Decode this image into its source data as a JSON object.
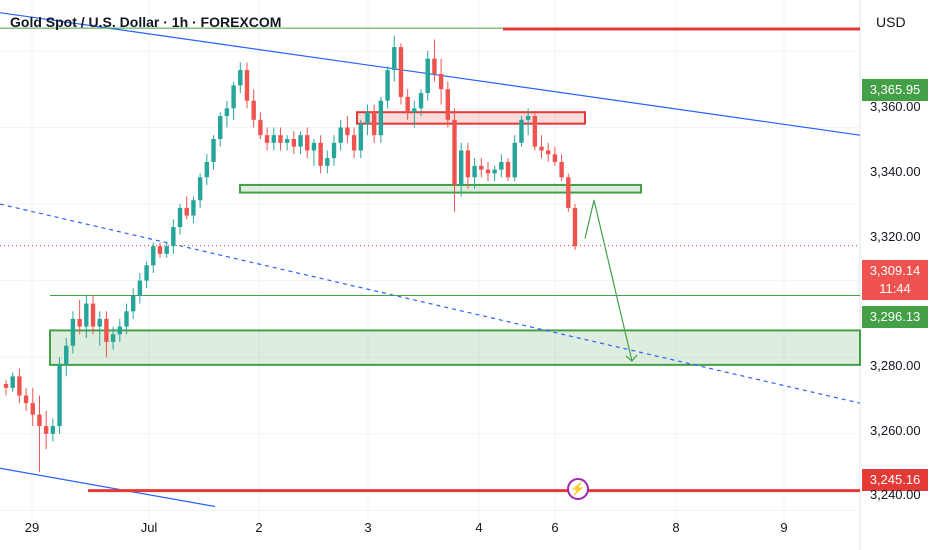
{
  "title": "Gold Spot / U.S. Dollar · 1h · FOREXCOM",
  "currency": "USD",
  "colors": {
    "up": "#26a69a",
    "down": "#ef5350",
    "blue": "#2962ff",
    "green": "#43a047",
    "red": "#e53935",
    "zone_red": "#ef5350",
    "zone_green": "#26a69a"
  },
  "price_tags": [
    {
      "id": "resistance",
      "label": "3,365.95",
      "color": "#43a047"
    },
    {
      "id": "current",
      "label": "3,309.14",
      "sub": "11:44",
      "color": "#ef5350"
    },
    {
      "id": "support",
      "label": "3,296.13",
      "color": "#43a047"
    },
    {
      "id": "lowline",
      "label": "3,245.16",
      "color": "#e53935"
    }
  ],
  "y_ticks": [
    "3,360.00",
    "3,340.00",
    "3,320.00",
    "3,280.00",
    "3,260.00",
    "3,240.00"
  ],
  "x_ticks": [
    "29",
    "Jul",
    "2",
    "3",
    "4",
    "6",
    "8",
    "9"
  ],
  "chart_data": {
    "type": "candlestick",
    "title": "Gold Spot / U.S. Dollar · 1h · FOREXCOM",
    "y_unit": "USD",
    "ylim": [
      3238,
      3372
    ],
    "x_labels": [
      "29",
      "Jul",
      "2",
      "3",
      "4",
      "6",
      "8",
      "9"
    ],
    "grid": true,
    "candles": [
      [
        3273,
        3274,
        3270,
        3272
      ],
      [
        3272,
        3276,
        3271,
        3275
      ],
      [
        3275,
        3277,
        3268,
        3270
      ],
      [
        3270,
        3272,
        3266,
        3268
      ],
      [
        3268,
        3272,
        3262,
        3265
      ],
      [
        3265,
        3270,
        3250,
        3262
      ],
      [
        3262,
        3266,
        3256,
        3260
      ],
      [
        3260,
        3264,
        3258,
        3262
      ],
      [
        3262,
        3280,
        3260,
        3278
      ],
      [
        3278,
        3285,
        3275,
        3283
      ],
      [
        3283,
        3292,
        3281,
        3290
      ],
      [
        3290,
        3295,
        3286,
        3288
      ],
      [
        3288,
        3296,
        3285,
        3294
      ],
      [
        3294,
        3296,
        3286,
        3288
      ],
      [
        3288,
        3292,
        3283,
        3290
      ],
      [
        3290,
        3292,
        3280,
        3284
      ],
      [
        3284,
        3288,
        3282,
        3286
      ],
      [
        3286,
        3290,
        3284,
        3288
      ],
      [
        3288,
        3294,
        3286,
        3292
      ],
      [
        3292,
        3298,
        3290,
        3296
      ],
      [
        3296,
        3302,
        3294,
        3300
      ],
      [
        3300,
        3305,
        3298,
        3304
      ],
      [
        3304,
        3310,
        3302,
        3309
      ],
      [
        3309,
        3310,
        3306,
        3307
      ],
      [
        3307,
        3310,
        3306,
        3309
      ],
      [
        3309,
        3316,
        3307,
        3314
      ],
      [
        3314,
        3320,
        3312,
        3319
      ],
      [
        3319,
        3322,
        3316,
        3317
      ],
      [
        3317,
        3322,
        3315,
        3321
      ],
      [
        3321,
        3328,
        3319,
        3327
      ],
      [
        3327,
        3333,
        3325,
        3331
      ],
      [
        3331,
        3338,
        3329,
        3337
      ],
      [
        3337,
        3344,
        3335,
        3343
      ],
      [
        3343,
        3347,
        3340,
        3345
      ],
      [
        3345,
        3352,
        3342,
        3351
      ],
      [
        3351,
        3357,
        3349,
        3355
      ],
      [
        3355,
        3357,
        3345,
        3347
      ],
      [
        3347,
        3350,
        3340,
        3342
      ],
      [
        3342,
        3344,
        3337,
        3338
      ],
      [
        3338,
        3340,
        3334,
        3336
      ],
      [
        3336,
        3340,
        3334,
        3338
      ],
      [
        3338,
        3340,
        3334,
        3336
      ],
      [
        3336,
        3338,
        3334,
        3337
      ],
      [
        3337,
        3339,
        3333,
        3335
      ],
      [
        3335,
        3339,
        3333,
        3338
      ],
      [
        3338,
        3340,
        3332,
        3334
      ],
      [
        3334,
        3337,
        3330,
        3336
      ],
      [
        3336,
        3338,
        3328,
        3330
      ],
      [
        3330,
        3334,
        3328,
        3332
      ],
      [
        3332,
        3338,
        3330,
        3336
      ],
      [
        3336,
        3342,
        3334,
        3340
      ],
      [
        3340,
        3343,
        3336,
        3338
      ],
      [
        3338,
        3340,
        3332,
        3334
      ],
      [
        3334,
        3342,
        3332,
        3341
      ],
      [
        3341,
        3346,
        3338,
        3344
      ],
      [
        3344,
        3346,
        3336,
        3338
      ],
      [
        3338,
        3348,
        3336,
        3347
      ],
      [
        3347,
        3356,
        3345,
        3355
      ],
      [
        3355,
        3364,
        3352,
        3361
      ],
      [
        3361,
        3362,
        3346,
        3348
      ],
      [
        3348,
        3350,
        3342,
        3344
      ],
      [
        3344,
        3347,
        3340,
        3345
      ],
      [
        3345,
        3350,
        3343,
        3349
      ],
      [
        3349,
        3360,
        3347,
        3358
      ],
      [
        3358,
        3363,
        3352,
        3354
      ],
      [
        3354,
        3358,
        3346,
        3350
      ],
      [
        3350,
        3352,
        3340,
        3342
      ],
      [
        3342,
        3345,
        3318,
        3325
      ],
      [
        3325,
        3336,
        3322,
        3334
      ],
      [
        3334,
        3336,
        3324,
        3327
      ],
      [
        3327,
        3332,
        3324,
        3330
      ],
      [
        3330,
        3332,
        3327,
        3329
      ],
      [
        3329,
        3331,
        3326,
        3328
      ],
      [
        3328,
        3330,
        3326,
        3329
      ],
      [
        3329,
        3333,
        3327,
        3331
      ],
      [
        3331,
        3332,
        3326,
        3327
      ],
      [
        3327,
        3338,
        3326,
        3336
      ],
      [
        3336,
        3343,
        3335,
        3342
      ],
      [
        3342,
        3345,
        3338,
        3343
      ],
      [
        3343,
        3344,
        3334,
        3335
      ],
      [
        3335,
        3338,
        3332,
        3334
      ],
      [
        3334,
        3336,
        3331,
        3333
      ],
      [
        3333,
        3335,
        3330,
        3331
      ],
      [
        3331,
        3333,
        3326,
        3327
      ],
      [
        3327,
        3328,
        3318,
        3319
      ],
      [
        3319,
        3320,
        3308,
        3309
      ]
    ],
    "levels": [
      {
        "price": 3365.95,
        "label": "3,365.95",
        "color": "green"
      },
      {
        "price": 3296.13,
        "label": "3,296.13",
        "color": "green"
      },
      {
        "price": 3245.16,
        "label": "3,245.16",
        "color": "red"
      },
      {
        "price": 3309.14,
        "label": "3,309.14",
        "color": "red",
        "style": "dotted"
      }
    ],
    "zones": [
      {
        "type": "resistance",
        "top": 3344,
        "bottom": 3341,
        "color": "red"
      },
      {
        "type": "support",
        "top": 3325,
        "bottom": 3323,
        "color": "green"
      },
      {
        "type": "demand",
        "top": 3287,
        "bottom": 3278,
        "color": "green"
      }
    ],
    "trend_lines": [
      {
        "from": [
          0,
          3370
        ],
        "to": [
          1,
          3338
        ],
        "color": "blue",
        "style": "solid"
      },
      {
        "from": [
          0,
          3320
        ],
        "to": [
          1,
          3268
        ],
        "color": "blue",
        "style": "dashed"
      },
      {
        "from": [
          0,
          3251
        ],
        "to": [
          0.25,
          3241
        ],
        "color": "blue",
        "style": "solid"
      }
    ],
    "projection": [
      [
        0,
        3311
      ],
      [
        0.04,
        3321
      ],
      [
        0.15,
        3279
      ]
    ]
  }
}
